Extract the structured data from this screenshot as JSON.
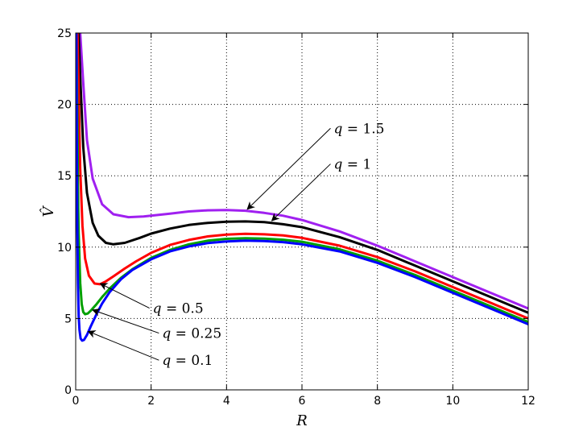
{
  "chart_data": {
    "type": "line",
    "title": "",
    "xlabel": "R",
    "ylabel": "V̂",
    "xlim": [
      0,
      12
    ],
    "ylim": [
      0,
      25
    ],
    "xticks": [
      0,
      2,
      4,
      6,
      8,
      10,
      12
    ],
    "yticks": [
      0,
      5,
      10,
      15,
      20,
      25
    ],
    "grid": true,
    "legend": "none",
    "series": [
      {
        "color": "#a020f0",
        "x": [
          0.02,
          0.05,
          0.08,
          0.12,
          0.2,
          0.3,
          0.45,
          0.7,
          1.0,
          1.4,
          1.8,
          2.5,
          3.0,
          3.5,
          4.0,
          4.5,
          5.0,
          5.5,
          6.0,
          7.0,
          8.0,
          9.0,
          10.0,
          11.0,
          12.0
        ],
        "y": [
          25.0,
          25.0,
          25.0,
          25.0,
          21.5,
          17.5,
          14.8,
          13.0,
          12.3,
          12.1,
          12.15,
          12.35,
          12.5,
          12.58,
          12.6,
          12.55,
          12.4,
          12.2,
          11.9,
          11.1,
          10.1,
          9.0,
          7.9,
          6.8,
          5.7
        ]
      },
      {
        "color": "#000000",
        "x": [
          0.02,
          0.05,
          0.08,
          0.12,
          0.2,
          0.3,
          0.45,
          0.6,
          0.8,
          1.0,
          1.3,
          1.7,
          2.0,
          2.5,
          3.0,
          3.5,
          4.0,
          4.5,
          5.0,
          5.5,
          6.0,
          7.0,
          8.0,
          9.0,
          10.0,
          11.0,
          12.0
        ],
        "y": [
          25.0,
          25.0,
          25.0,
          22.0,
          17.0,
          13.8,
          11.7,
          10.8,
          10.3,
          10.2,
          10.3,
          10.65,
          10.95,
          11.3,
          11.55,
          11.7,
          11.78,
          11.8,
          11.75,
          11.6,
          11.4,
          10.7,
          9.8,
          8.7,
          7.6,
          6.5,
          5.4
        ]
      },
      {
        "color": "#ff0000",
        "x": [
          0.02,
          0.05,
          0.08,
          0.12,
          0.18,
          0.25,
          0.35,
          0.5,
          0.65,
          0.8,
          1.0,
          1.3,
          1.6,
          2.0,
          2.5,
          3.0,
          3.5,
          4.0,
          4.5,
          5.0,
          5.5,
          6.0,
          7.0,
          8.0,
          9.0,
          10.0,
          11.0,
          12.0
        ],
        "y": [
          25.0,
          25.0,
          21.0,
          15.5,
          11.5,
          9.2,
          8.0,
          7.45,
          7.4,
          7.6,
          7.95,
          8.5,
          9.0,
          9.6,
          10.15,
          10.5,
          10.75,
          10.88,
          10.93,
          10.9,
          10.82,
          10.65,
          10.1,
          9.3,
          8.3,
          7.2,
          6.1,
          5.0
        ]
      },
      {
        "color": "#00a000",
        "x": [
          0.02,
          0.04,
          0.06,
          0.08,
          0.12,
          0.16,
          0.2,
          0.25,
          0.32,
          0.4,
          0.55,
          0.7,
          0.9,
          1.2,
          1.5,
          2.0,
          2.5,
          3.0,
          3.5,
          4.0,
          4.5,
          5.0,
          5.5,
          6.0,
          7.0,
          8.0,
          9.0,
          10.0,
          11.0,
          12.0
        ],
        "y": [
          25.0,
          20.0,
          14.5,
          11.0,
          7.5,
          6.0,
          5.45,
          5.3,
          5.35,
          5.55,
          6.0,
          6.5,
          7.1,
          7.85,
          8.45,
          9.25,
          9.8,
          10.2,
          10.45,
          10.58,
          10.62,
          10.6,
          10.52,
          10.38,
          9.85,
          9.05,
          8.05,
          6.95,
          5.85,
          4.75
        ]
      },
      {
        "color": "#0000ff",
        "x": [
          0.02,
          0.03,
          0.04,
          0.06,
          0.08,
          0.1,
          0.13,
          0.17,
          0.22,
          0.3,
          0.4,
          0.55,
          0.7,
          0.9,
          1.2,
          1.5,
          2.0,
          2.5,
          3.0,
          3.5,
          4.0,
          4.5,
          5.0,
          5.5,
          6.0,
          7.0,
          8.0,
          9.0,
          10.0,
          11.0,
          12.0
        ],
        "y": [
          25.0,
          18.0,
          12.0,
          7.5,
          5.2,
          4.2,
          3.6,
          3.45,
          3.5,
          3.85,
          4.45,
          5.3,
          6.05,
          6.85,
          7.75,
          8.4,
          9.15,
          9.7,
          10.05,
          10.28,
          10.4,
          10.45,
          10.43,
          10.35,
          10.2,
          9.7,
          8.9,
          7.9,
          6.8,
          5.7,
          4.6
        ]
      }
    ],
    "annotations": [
      {
        "var": "q",
        "value": "1.5",
        "text_at": [
          6.8,
          18.1
        ],
        "arrow_to": [
          4.55,
          12.65
        ]
      },
      {
        "var": "q",
        "value": "1",
        "text_at": [
          6.8,
          15.6
        ],
        "arrow_to": [
          5.2,
          11.85
        ]
      },
      {
        "var": "q",
        "value": "0.5",
        "text_at": [
          2.0,
          5.5
        ],
        "arrow_to": [
          0.65,
          7.45
        ]
      },
      {
        "var": "q",
        "value": "0.25",
        "text_at": [
          2.25,
          3.75
        ],
        "arrow_to": [
          0.45,
          5.6
        ]
      },
      {
        "var": "q",
        "value": "0.1",
        "text_at": [
          2.25,
          1.85
        ],
        "arrow_to": [
          0.33,
          4.1
        ]
      }
    ]
  }
}
